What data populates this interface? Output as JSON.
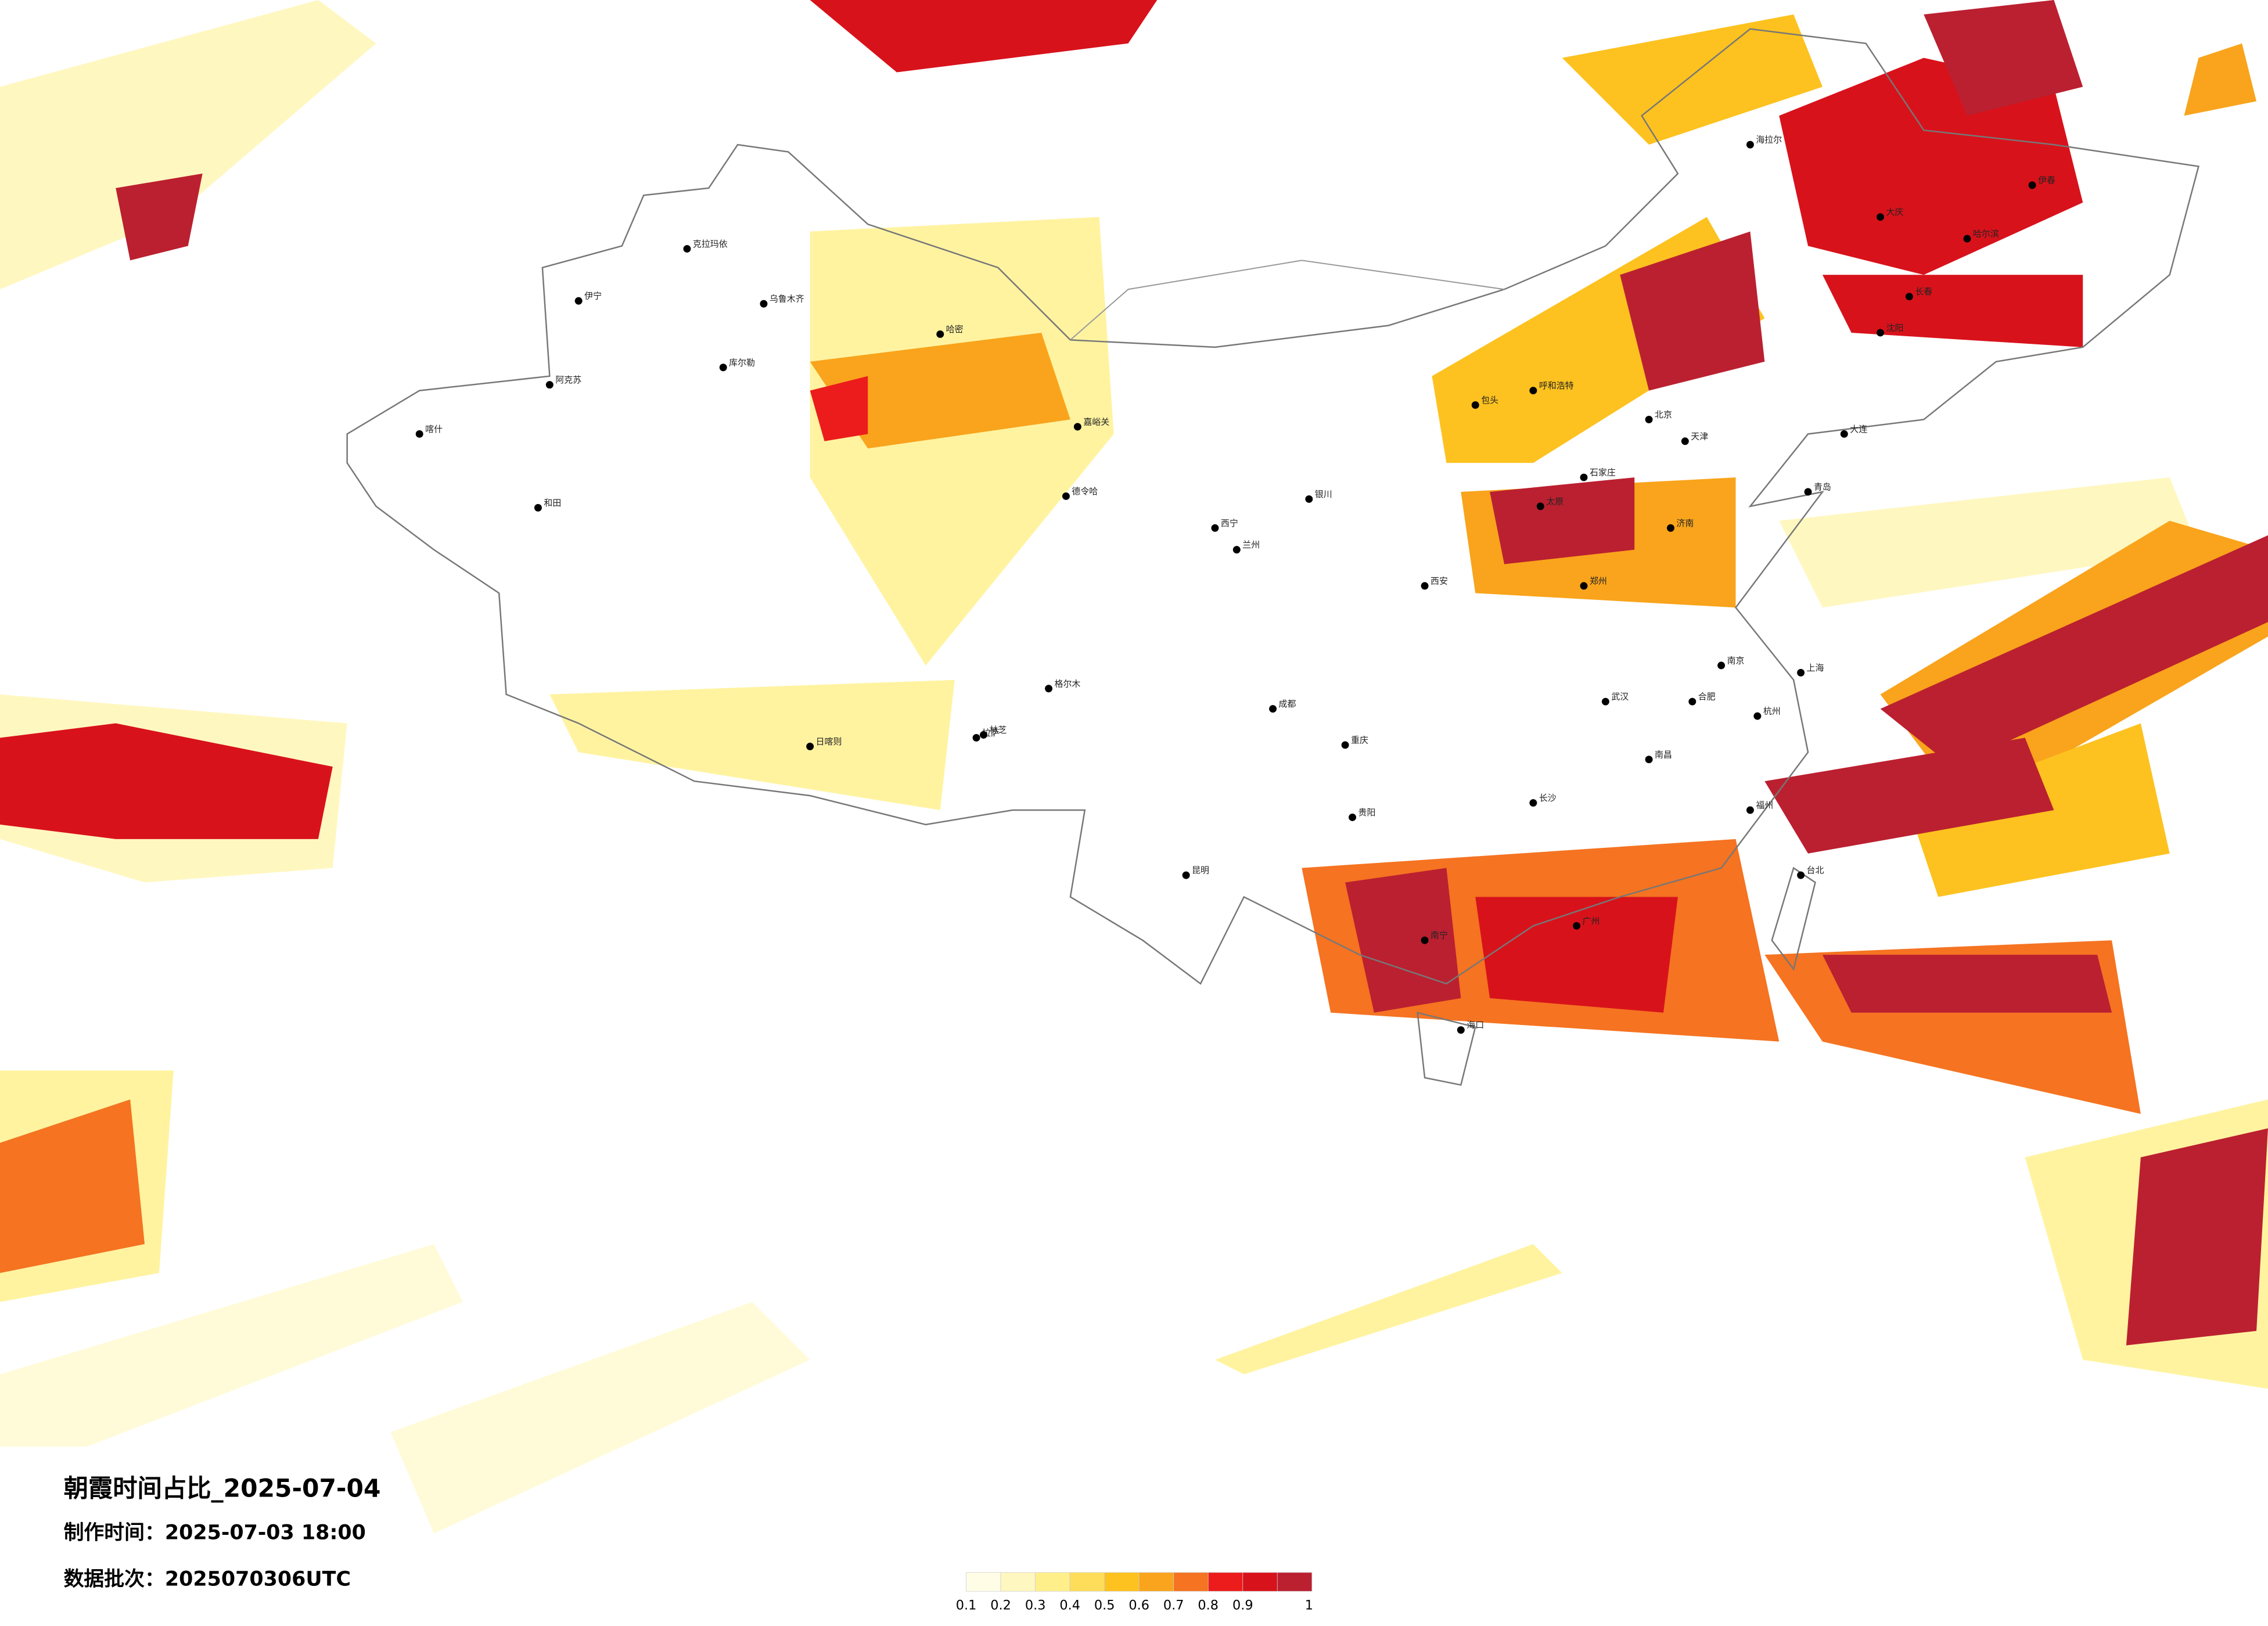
{
  "map": {
    "title": "朝霞时间占比_2025-07-04",
    "made_time": "制作时间：2025-07-03 18:00",
    "batch": "数据批次：2025070306UTC",
    "colorbar": {
      "ticks": [
        0.1,
        0.2,
        0.3,
        0.4,
        0.5,
        0.6,
        0.7,
        0.8,
        0.9,
        1
      ],
      "colors": [
        "#fffde6",
        "#fff7c0",
        "#ffef8a",
        "#fedd5a",
        "#fdc21f",
        "#f9a41c",
        "#f57321",
        "#ec1c1c",
        "#d8121b",
        "#bb2030"
      ]
    },
    "cities": [
      "克拉玛依",
      "乌鲁木齐",
      "伊宁",
      "库尔勒",
      "阿克苏",
      "和田",
      "喀什",
      "哈密",
      "嘉峪关",
      "德令哈",
      "格尔木",
      "拉萨",
      "日喀则",
      "林芝",
      "西宁",
      "兰州",
      "银川",
      "呼和浩特",
      "包头",
      "北京",
      "天津",
      "石家庄",
      "太原",
      "济南",
      "郑州",
      "西安",
      "成都",
      "重庆",
      "贵阳",
      "昆明",
      "南宁",
      "广州",
      "长沙",
      "武汉",
      "合肥",
      "南京",
      "上海",
      "杭州",
      "福州",
      "南昌",
      "海口",
      "台北",
      "沈阳",
      "长春",
      "哈尔滨",
      "海拉尔",
      "大庆",
      "伊春",
      "青岛",
      "大连"
    ]
  }
}
